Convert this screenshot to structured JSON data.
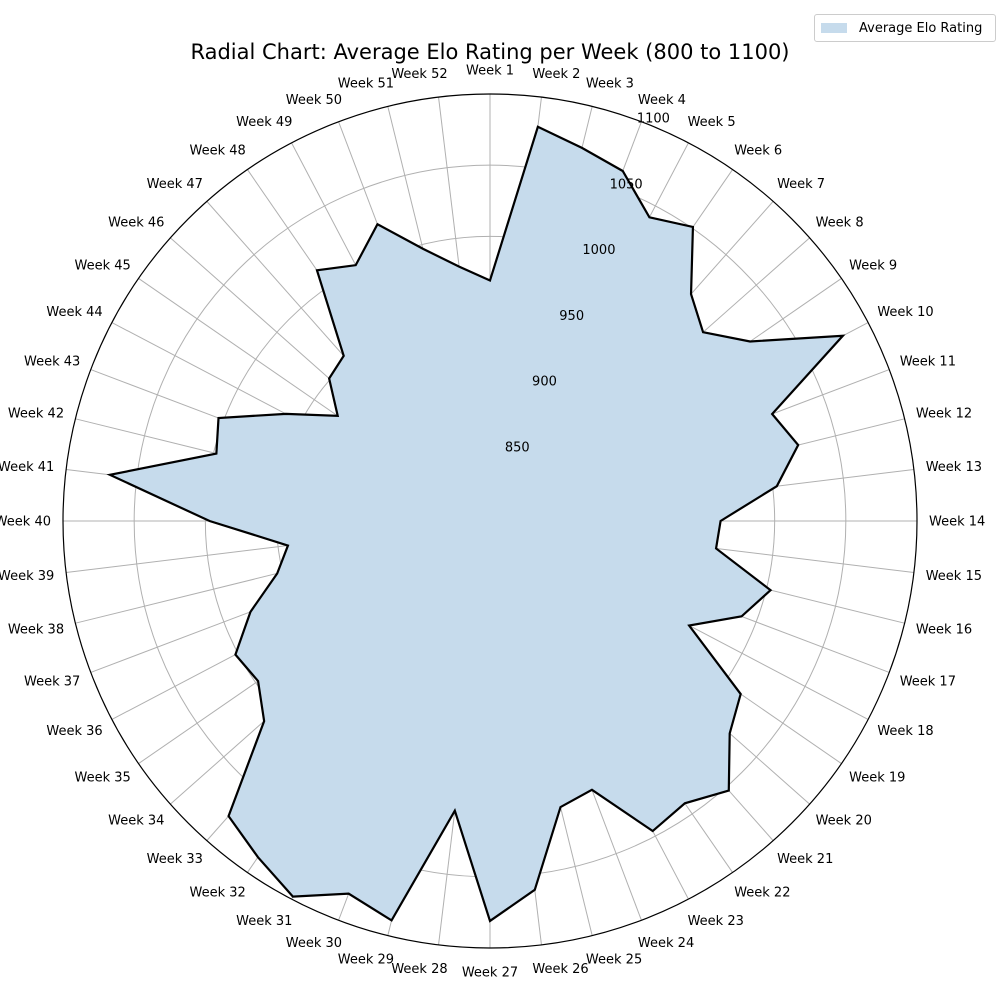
{
  "chart_data": {
    "type": "radar",
    "title": "Radial Chart: Average Elo Rating per Week (800 to 1100)",
    "categories": [
      "Week 1",
      "Week 2",
      "Week 3",
      "Week 4",
      "Week 5",
      "Week 6",
      "Week 7",
      "Week 8",
      "Week 9",
      "Week 10",
      "Week 11",
      "Week 12",
      "Week 13",
      "Week 14",
      "Week 15",
      "Week 16",
      "Week 17",
      "Week 18",
      "Week 19",
      "Week 20",
      "Week 21",
      "Week 22",
      "Week 23",
      "Week 24",
      "Week 25",
      "Week 26",
      "Week 27",
      "Week 28",
      "Week 29",
      "Week 30",
      "Week 31",
      "Week 32",
      "Week 33",
      "Week 34",
      "Week 35",
      "Week 36",
      "Week 37",
      "Week 38",
      "Week 39",
      "Week 40",
      "Week 41",
      "Week 42",
      "Week 43",
      "Week 44",
      "Week 45",
      "Week 46",
      "Week 47",
      "Week 48",
      "Week 49",
      "Week 50",
      "Week 51",
      "Week 52"
    ],
    "series": [
      {
        "name": "Average Elo Rating",
        "values": [
          969,
          1079,
          1070,
          1063,
          1041,
          1051,
          1013,
          1000,
          1022,
          1080,
          1012,
          1023,
          1003,
          962,
          960,
          1003,
          989,
          958,
          1014,
          1025,
          1053,
          1041,
          1046,
          1002,
          1007,
          1061,
          1081,
          1005,
          1089,
          1080,
          1098,
          1087,
          1077,
          1012,
          998,
          1002,
          980,
          954,
          943,
          997,
          1069,
          998,
          1004,
          962,
          930,
          951,
          955,
          1014,
          1003,
          1023,
          997,
          980
        ]
      }
    ],
    "rlim": [
      800,
      1100
    ],
    "r_ticks": [
      850,
      900,
      950,
      1000,
      1050,
      1100
    ],
    "grid": true,
    "legend": "top-right",
    "colors": {
      "fill": "#c6dbec",
      "line": "#000000",
      "grid": "#b0b0b0"
    }
  }
}
